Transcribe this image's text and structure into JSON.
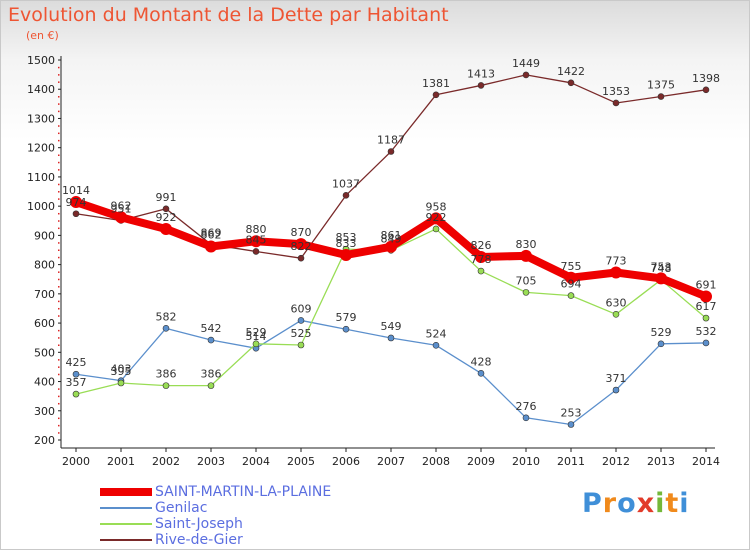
{
  "chart_data": {
    "type": "line",
    "title": "Evolution du Montant de la Dette par Habitant",
    "subtitle": "(en €)",
    "xlabel": "",
    "ylabel": "",
    "ylim": [
      200,
      1500
    ],
    "yticks": [
      200,
      300,
      400,
      500,
      600,
      700,
      800,
      900,
      1000,
      1100,
      1200,
      1300,
      1400,
      1500
    ],
    "categories": [
      "2000",
      "2001",
      "2002",
      "2003",
      "2004",
      "2005",
      "2006",
      "2007",
      "2008",
      "2009",
      "2010",
      "2011",
      "2012",
      "2013",
      "2014"
    ],
    "series": [
      {
        "name": "Rive-de-Gier",
        "color": "#7a2a2a",
        "values": [
          974,
          951,
          991,
          869,
          845,
          822,
          1037,
          1187,
          1381,
          1413,
          1449,
          1422,
          1353,
          1375,
          1398
        ],
        "labels": [
          "974",
          "951",
          "991",
          "869",
          "845",
          "822",
          "1037",
          "1187",
          "1381",
          "1413",
          "1449",
          "1422",
          "1353",
          "1375",
          "1398"
        ]
      },
      {
        "name": "Genilac",
        "color": "#5b8fcc",
        "values": [
          425,
          403,
          582,
          542,
          514,
          609,
          579,
          549,
          524,
          428,
          276,
          253,
          371,
          529,
          532
        ],
        "labels": [
          "425",
          "403",
          "582",
          "542",
          "514",
          "609",
          "579",
          "549",
          "524",
          "428",
          "276",
          "253",
          "371",
          "529",
          "532"
        ]
      },
      {
        "name": "Saint-Joseph",
        "color": "#99dd55",
        "values": [
          357,
          395,
          386,
          386,
          529,
          525,
          853,
          849,
          922,
          778,
          705,
          694,
          630,
          748,
          617
        ],
        "labels": [
          "357",
          "395",
          "386",
          "386",
          "529",
          "525",
          "853",
          "849",
          "922",
          "778",
          "705",
          "694",
          "630",
          "748",
          "617"
        ]
      },
      {
        "name": "SAINT-MARTIN-LA-PLAINE",
        "color": "#ee0000",
        "values": [
          1014,
          962,
          922,
          862,
          880,
          870,
          833,
          861,
          958,
          826,
          830,
          755,
          773,
          753,
          691
        ],
        "labels": [
          "1014",
          "962",
          "922",
          "862",
          "880",
          "870",
          "833",
          "861",
          "958",
          "826",
          "830",
          "755",
          "773",
          "753",
          "691"
        ]
      }
    ],
    "legend_order": [
      "SAINT-MARTIN-LA-PLAINE",
      "Genilac",
      "Saint-Joseph",
      "Rive-de-Gier"
    ],
    "grid": false
  },
  "brand": {
    "text": "Proxiti",
    "letter_colors": [
      "#3f8fd8",
      "#f08a1c",
      "#3f8fd8",
      "#e23b2a",
      "#74b83a",
      "#f08a1c",
      "#3f8fd8"
    ]
  }
}
